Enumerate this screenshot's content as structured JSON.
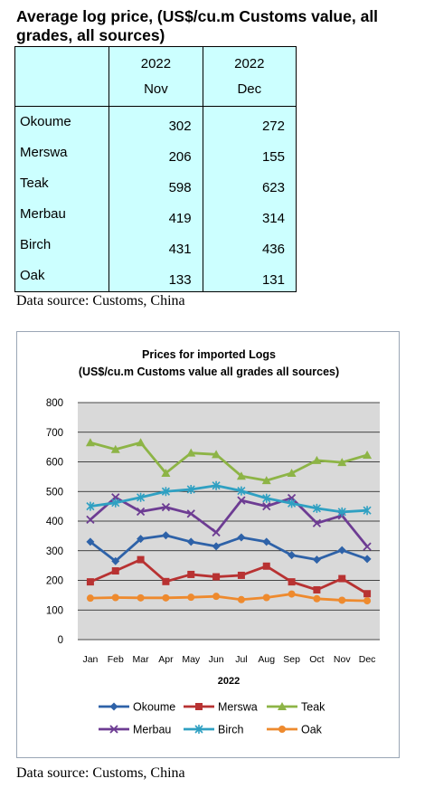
{
  "heading": "Average log price, (US$/cu.m Customs value, all grades, all sources)",
  "table": {
    "columns": [
      {
        "year": "2022",
        "month": "Nov"
      },
      {
        "year": "2022",
        "month": "Dec"
      }
    ],
    "rows": [
      {
        "name": "Okoume",
        "nov": "302",
        "dec": "272"
      },
      {
        "name": "Merswa",
        "nov": "206",
        "dec": "155"
      },
      {
        "name": "Teak",
        "nov": "598",
        "dec": "623"
      },
      {
        "name": "Merbau",
        "nov": "419",
        "dec": "314"
      },
      {
        "name": "Birch",
        "nov": "431",
        "dec": "436"
      },
      {
        "name": "Oak",
        "nov": "133",
        "dec": "131"
      }
    ]
  },
  "source_top": "Data source: Customs, China",
  "source_bottom": "Data source: Customs, China",
  "chart_data": {
    "type": "line",
    "title": "Prices for imported Logs",
    "subtitle": "(US$/cu.m Customs value all grades all sources)",
    "xlabel": "2022",
    "ylabel": "",
    "categories": [
      "Jan",
      "Feb",
      "Mar",
      "Apr",
      "May",
      "Jun",
      "Jul",
      "Aug",
      "Sep",
      "Oct",
      "Nov",
      "Dec"
    ],
    "ylim": [
      0,
      800
    ],
    "yticks": [
      "0",
      "100",
      "200",
      "300",
      "400",
      "500",
      "600",
      "700",
      "800"
    ],
    "grid": true,
    "legend_position": "bottom",
    "plot_background": "#d9d9d9",
    "series": [
      {
        "name": "Okoume",
        "color": "#2e62a8",
        "marker": "diamond",
        "values": [
          330,
          265,
          340,
          352,
          330,
          315,
          345,
          330,
          285,
          270,
          302,
          272
        ]
      },
      {
        "name": "Merswa",
        "color": "#b83232",
        "marker": "square",
        "values": [
          195,
          232,
          270,
          196,
          220,
          212,
          217,
          248,
          195,
          168,
          206,
          155
        ]
      },
      {
        "name": "Teak",
        "color": "#8db446",
        "marker": "triangle",
        "values": [
          665,
          642,
          665,
          562,
          630,
          625,
          552,
          537,
          562,
          605,
          598,
          623
        ]
      },
      {
        "name": "Merbau",
        "color": "#6d3c93",
        "marker": "x",
        "values": [
          405,
          480,
          432,
          447,
          425,
          362,
          470,
          450,
          478,
          393,
          419,
          314
        ]
      },
      {
        "name": "Birch",
        "color": "#2fa0c2",
        "marker": "star",
        "values": [
          450,
          462,
          480,
          500,
          507,
          520,
          502,
          477,
          460,
          443,
          431,
          436
        ]
      },
      {
        "name": "Oak",
        "color": "#ee8a2e",
        "marker": "circle",
        "values": [
          140,
          142,
          141,
          141,
          143,
          146,
          135,
          142,
          154,
          138,
          133,
          131
        ]
      }
    ]
  }
}
